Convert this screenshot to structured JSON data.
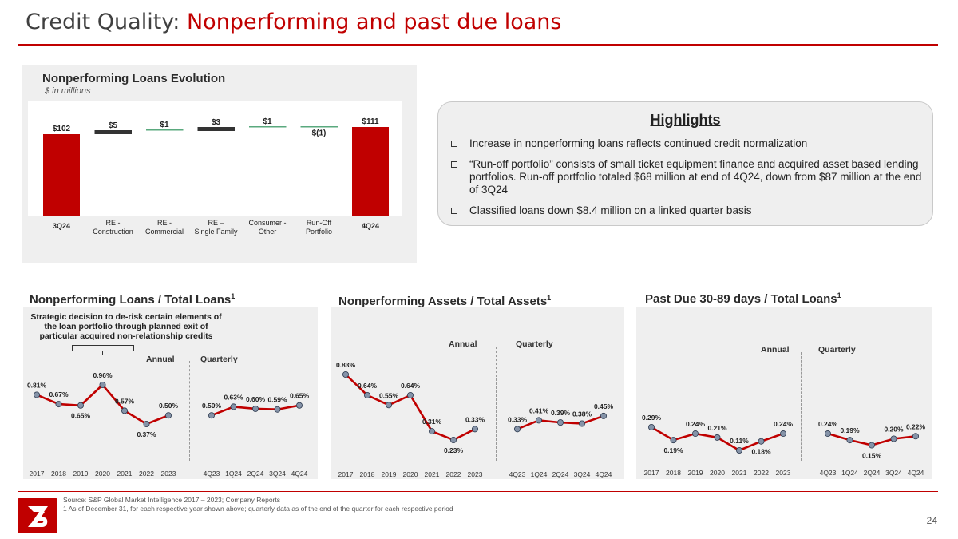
{
  "header": {
    "title_prefix": "Credit Quality:",
    "title_accent": "Nonperforming and past due loans"
  },
  "waterfall": {
    "title": "Nonperforming Loans Evolution",
    "subtitle": "$ in millions"
  },
  "highlights": {
    "title": "Highlights",
    "items": [
      "Increase in nonperforming loans reflects continued credit normalization",
      "“Run-off portfolio” consists of small ticket equipment finance and acquired asset based lending portfolios. Run-off portfolio totaled $68 million at end of 4Q24, down from $87 million at the end of 3Q24",
      "Classified loans down $8.4 million on a linked quarter basis"
    ]
  },
  "npl_section": {
    "title": "Nonperforming Loans / Total Loans",
    "sup": "1",
    "note": "Strategic decision to de-risk certain elements of the loan portfolio through planned exit of particular acquired non-relationship credits",
    "annual_label": "Annual",
    "quarterly_label": "Quarterly"
  },
  "npa_section": {
    "title": "Nonperforming Assets / Total Assets",
    "sup": "1",
    "annual_label": "Annual",
    "quarterly_label": "Quarterly"
  },
  "pd_section": {
    "title": "Past Due 30-89 days / Total Loans",
    "sup": "1",
    "annual_label": "Annual",
    "quarterly_label": "Quarterly"
  },
  "footer": {
    "source": "Source: S&P Global Market Intelligence 2017 – 2023; Company Reports",
    "footnote": "1   As of December 31, for each respective year shown above; quarterly data as of the end of the quarter for each respective period",
    "page": "24"
  },
  "colors": {
    "accent": "#c00000",
    "bar_dark": "#333333",
    "bar_green": "#5aa97e",
    "line": "#c00000",
    "marker": "#8593a8"
  },
  "chart_data": [
    {
      "type": "bar",
      "subtype": "waterfall",
      "categories": [
        "3Q24",
        "RE - Construction",
        "RE - Commercial",
        "RE – Single Family",
        "Consumer - Other",
        "Run-Off Portfolio",
        "4Q24"
      ],
      "values": [
        102,
        5,
        1,
        3,
        1,
        -1,
        111
      ],
      "labels": [
        "$102",
        "$5",
        "$1",
        "$3",
        "$1",
        "$(1)",
        "$111"
      ],
      "kinds": [
        "total",
        "delta",
        "delta",
        "delta",
        "delta",
        "delta",
        "total"
      ],
      "unit": "$ in millions"
    },
    {
      "type": "line",
      "title": "Nonperforming Loans / Total Loans",
      "annual": {
        "x": [
          "2017",
          "2018",
          "2019",
          "2020",
          "2021",
          "2022",
          "2023"
        ],
        "values": [
          0.81,
          0.67,
          0.65,
          0.96,
          0.57,
          0.37,
          0.5
        ]
      },
      "quarterly": {
        "x": [
          "4Q23",
          "1Q24",
          "2Q24",
          "3Q24",
          "4Q24"
        ],
        "values": [
          0.5,
          0.63,
          0.6,
          0.59,
          0.65
        ]
      },
      "unit": "%"
    },
    {
      "type": "line",
      "title": "Nonperforming Assets / Total Assets",
      "annual": {
        "x": [
          "2017",
          "2018",
          "2019",
          "2020",
          "2021",
          "2022",
          "2023"
        ],
        "values": [
          0.83,
          0.64,
          0.55,
          0.64,
          0.31,
          0.23,
          0.33
        ]
      },
      "quarterly": {
        "x": [
          "4Q23",
          "1Q24",
          "2Q24",
          "3Q24",
          "4Q24"
        ],
        "values": [
          0.33,
          0.41,
          0.39,
          0.38,
          0.45
        ]
      },
      "unit": "%"
    },
    {
      "type": "line",
      "title": "Past Due 30-89 days / Total Loans",
      "annual": {
        "x": [
          "2017",
          "2018",
          "2019",
          "2020",
          "2021",
          "2022",
          "2023"
        ],
        "values": [
          0.29,
          0.19,
          0.24,
          0.21,
          0.11,
          0.18,
          0.24
        ]
      },
      "quarterly": {
        "x": [
          "4Q23",
          "1Q24",
          "2Q24",
          "3Q24",
          "4Q24"
        ],
        "values": [
          0.24,
          0.19,
          0.15,
          0.2,
          0.22
        ]
      },
      "unit": "%"
    }
  ]
}
